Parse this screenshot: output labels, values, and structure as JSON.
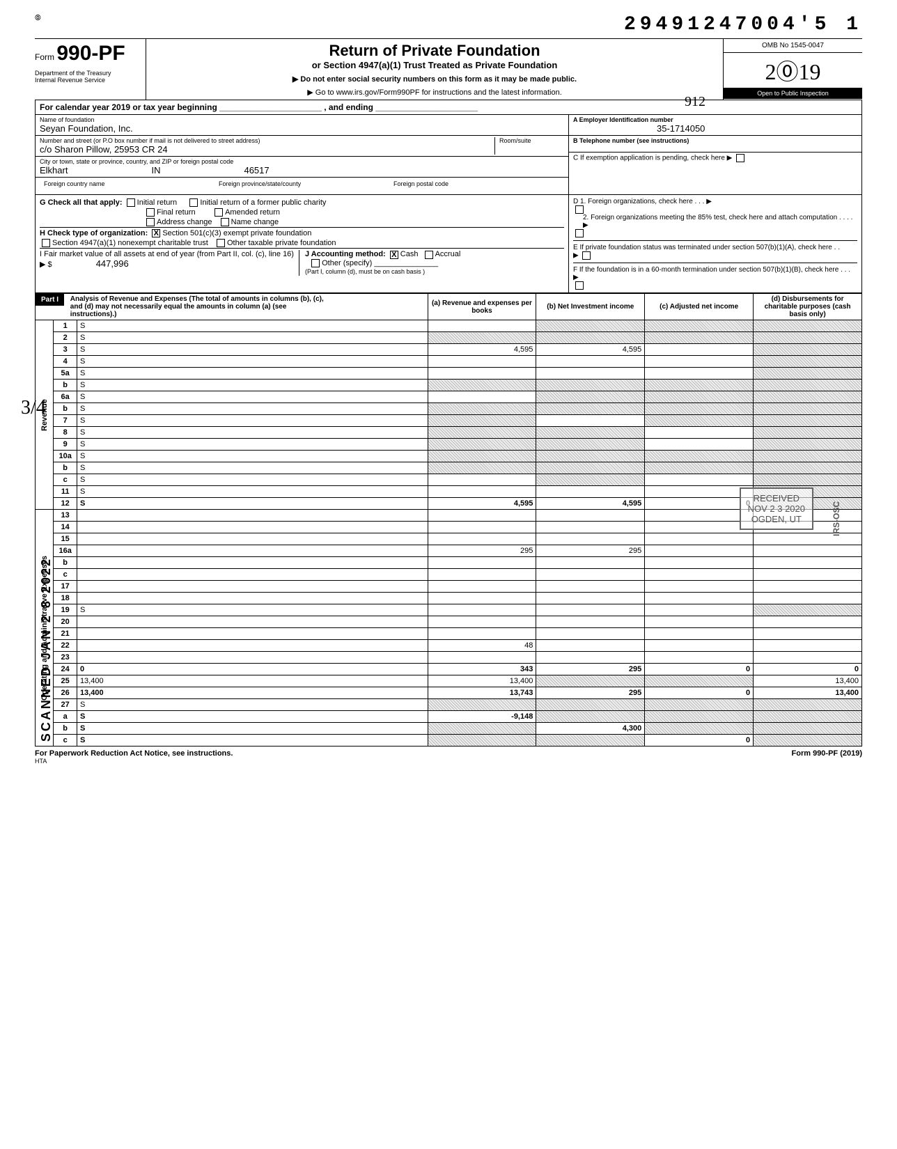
{
  "header": {
    "dln": "29491247004'5 1",
    "form_label": "Form",
    "form_number": "990-PF",
    "dept": "Department of the Treasury\nInternal Revenue Service",
    "title": "Return of Private Foundation",
    "subtitle": "or Section 4947(a)(1) Trust Treated as Private Foundation",
    "instr1": "▶   Do not enter social security numbers on this form as it may be made public.",
    "instr2": "▶   Go to www.irs.gov/Form990PF for instructions and the latest information.",
    "omb": "OMB No 1545-0047",
    "year_outline": "2⓪19",
    "public_inspection": "Open to Public Inspection",
    "hand1": "912"
  },
  "cal_year": "For calendar year 2019 or tax year beginning ______________________ , and ending ______________________",
  "id": {
    "name_lbl": "Name of foundation",
    "name": "Seyan Foundation, Inc.",
    "addr_lbl": "Number and street (or P.O  box number if mail is not delivered to street address)",
    "addr": "c/o Sharon Pillow, 25953 CR 24",
    "room_lbl": "Room/suite",
    "room": "",
    "city_lbl": "City or town, state or province, country, and ZIP or foreign postal code",
    "city": "Elkhart",
    "state": "IN",
    "zip": "46517",
    "fcn_lbl": "Foreign country name",
    "fps_lbl": "Foreign province/state/county",
    "fpc_lbl": "Foreign postal code",
    "ein_lbl": "A  Employer Identification number",
    "ein": "35-1714050",
    "tel_lbl": "B  Telephone number (see instructions)",
    "tel": "",
    "c_label": "C  If exemption application is pending, check here   ▶",
    "d1": "D  1. Foreign organizations, check here  .  .  .  ▶",
    "d2": "2. Foreign organizations meeting the 85% test, check here and attach computation .  .  .  .  ▶",
    "e": "E  If private foundation status was terminated under section 507(b)(1)(A), check here  .  .",
    "f": "F  If the foundation is in a 60-month termination under section 507(b)(1)(B), check here  .  .  .  ▶"
  },
  "g": {
    "label": "G   Check all that apply:",
    "opts": [
      "Initial return",
      "Final return",
      "Address change",
      "Initial return of a former public charity",
      "Amended return",
      "Name change"
    ]
  },
  "h": {
    "label": "H   Check type of organization:",
    "opt1": "Section 501(c)(3) exempt private foundation",
    "opt2": "Section 4947(a)(1) nonexempt charitable trust",
    "opt3": "Other taxable private foundation",
    "checked_opt1": "X"
  },
  "i": {
    "label": "I   Fair market value of all assets at end of year (from Part II, col. (c), line 16) ▶ $",
    "value": "447,996"
  },
  "j": {
    "label": "J   Accounting method:",
    "cash": "Cash",
    "accrual": "Accrual",
    "other": "Other (specify)",
    "checked_cash": "X",
    "note": "(Part I, column (d), must be on cash basis )"
  },
  "part1_hdr": "Part I",
  "part1_title": "Analysis of Revenue and Expenses (The total of amounts in columns (b), (c), and (d) may not necessarily equal the amounts in column (a) (see instructions).)",
  "cols": {
    "a": "(a) Revenue and expenses per books",
    "b": "(b)  Net Investment income",
    "c": "(c)  Adjusted net income",
    "d": "(d) Disbursements for charitable purposes (cash basis only)"
  },
  "section_rev": "Revenue",
  "section_exp": "Operating and Administrative Expenses",
  "rows": [
    {
      "n": "1",
      "d": "S",
      "a": "",
      "b": "S",
      "c": "S"
    },
    {
      "n": "2",
      "d": "S",
      "a": "S",
      "b": "S",
      "c": "S"
    },
    {
      "n": "3",
      "d": "S",
      "a": "4,595",
      "b": "4,595",
      "c": ""
    },
    {
      "n": "4",
      "d": "S",
      "a": "",
      "b": "",
      "c": ""
    },
    {
      "n": "5a",
      "d": "S",
      "a": "",
      "b": "",
      "c": ""
    },
    {
      "n": "b",
      "d": "S",
      "a": "S",
      "b": "S",
      "c": "S"
    },
    {
      "n": "6a",
      "d": "S",
      "a": "",
      "b": "S",
      "c": "S"
    },
    {
      "n": "b",
      "d": "S",
      "a": "S",
      "b": "S",
      "c": "S"
    },
    {
      "n": "7",
      "d": "S",
      "a": "S",
      "b": "",
      "c": "S"
    },
    {
      "n": "8",
      "d": "S",
      "a": "S",
      "b": "S",
      "c": ""
    },
    {
      "n": "9",
      "d": "S",
      "a": "S",
      "b": "S",
      "c": ""
    },
    {
      "n": "10a",
      "d": "S",
      "a": "S",
      "b": "S",
      "c": "S"
    },
    {
      "n": "b",
      "d": "S",
      "a": "S",
      "b": "S",
      "c": "S"
    },
    {
      "n": "c",
      "d": "S",
      "a": "",
      "b": "S",
      "c": ""
    },
    {
      "n": "11",
      "d": "S",
      "a": "",
      "b": "",
      "c": ""
    },
    {
      "n": "12",
      "d": "S",
      "a": "4,595",
      "b": "4,595",
      "c": "0",
      "bold": true
    },
    {
      "n": "13",
      "d": "",
      "a": "",
      "b": "",
      "c": ""
    },
    {
      "n": "14",
      "d": "",
      "a": "",
      "b": "",
      "c": ""
    },
    {
      "n": "15",
      "d": "",
      "a": "",
      "b": "",
      "c": ""
    },
    {
      "n": "16a",
      "d": "",
      "a": "295",
      "b": "295",
      "c": ""
    },
    {
      "n": "b",
      "d": "",
      "a": "",
      "b": "",
      "c": ""
    },
    {
      "n": "c",
      "d": "",
      "a": "",
      "b": "",
      "c": ""
    },
    {
      "n": "17",
      "d": "",
      "a": "",
      "b": "",
      "c": ""
    },
    {
      "n": "18",
      "d": "",
      "a": "",
      "b": "",
      "c": ""
    },
    {
      "n": "19",
      "d": "S",
      "a": "",
      "b": "",
      "c": ""
    },
    {
      "n": "20",
      "d": "",
      "a": "",
      "b": "",
      "c": ""
    },
    {
      "n": "21",
      "d": "",
      "a": "",
      "b": "",
      "c": ""
    },
    {
      "n": "22",
      "d": "",
      "a": "48",
      "b": "",
      "c": ""
    },
    {
      "n": "23",
      "d": "",
      "a": "",
      "b": "",
      "c": ""
    },
    {
      "n": "24",
      "d": "0",
      "a": "343",
      "b": "295",
      "c": "0",
      "bold": true
    },
    {
      "n": "25",
      "d": "13,400",
      "a": "13,400",
      "b": "S",
      "c": "S"
    },
    {
      "n": "26",
      "d": "13,400",
      "a": "13,743",
      "b": "295",
      "c": "0",
      "bold": true
    },
    {
      "n": "27",
      "d": "S",
      "a": "S",
      "b": "S",
      "c": "S"
    },
    {
      "n": "a",
      "d": "S",
      "a": "-9,148",
      "b": "S",
      "c": "S",
      "bold": true
    },
    {
      "n": "b",
      "d": "S",
      "a": "S",
      "b": "4,300",
      "c": "S",
      "bold": true
    },
    {
      "n": "c",
      "d": "S",
      "a": "S",
      "b": "S",
      "c": "0",
      "bold": true
    }
  ],
  "footer": {
    "left": "For Paperwork Reduction Act Notice, see instructions.",
    "hta": "HTA",
    "right": "Form 990-PF (2019)"
  },
  "stamps": {
    "side": "SCANNED  JAN 2 8 2022",
    "recv1": "RECEIVED",
    "recv2": "NOV 2 3 2020",
    "recv3": "OGDEN, UT",
    "irsosc": "IRS-OSC",
    "hand_frac": "3/4"
  },
  "colors": {
    "text": "#000000",
    "bg": "#ffffff",
    "shade_dark": "#bbbbbb",
    "shade_light": "#eeeeee",
    "stamp": "#555555"
  }
}
